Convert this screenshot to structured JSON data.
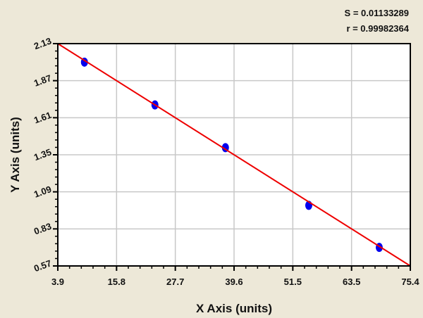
{
  "chart_data": {
    "type": "scatter",
    "title": "",
    "xlabel": "X Axis (units)",
    "ylabel": "Y Axis (units)",
    "xlim": [
      3.9,
      75.4
    ],
    "ylim": [
      0.57,
      2.13
    ],
    "xticks": [
      "3.9",
      "15.8",
      "27.7",
      "39.6",
      "51.5",
      "63.5",
      "75.4"
    ],
    "yticks": [
      "0.57",
      "0.83",
      "1.09",
      "1.35",
      "1.61",
      "1.87",
      "2.13"
    ],
    "grid": true,
    "points": {
      "x": [
        9.3,
        23.6,
        37.9,
        54.8,
        69.1
      ],
      "y": [
        2.0,
        1.7,
        1.4,
        0.995,
        0.7
      ],
      "color": "#0000ee"
    },
    "fit_line": {
      "x": [
        3.9,
        75.4
      ],
      "y": [
        2.13,
        0.57
      ],
      "color": "#ee0000"
    },
    "annotations": {
      "s": "S = 0.01133289",
      "r": "r = 0.99982364"
    }
  }
}
